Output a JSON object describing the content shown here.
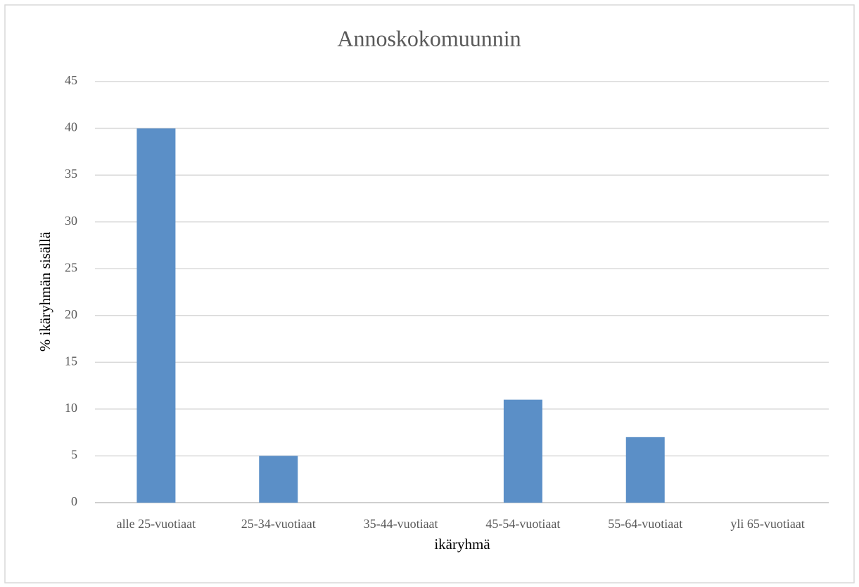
{
  "chart_data": {
    "type": "bar",
    "title": "Annoskokomuunnin",
    "x_label": "ikäryhmä",
    "y_label": "% ikäryhmän sisällä",
    "categories": [
      "alle 25-vuotiaat",
      "25-34-vuotiaat",
      "35-44-vuotiaat",
      "45-54-vuotiaat",
      "55-64-vuotiaat",
      "yli 65-vuotiaat"
    ],
    "values": [
      40,
      5,
      0,
      11,
      7,
      0
    ],
    "color": "#5b8fc7",
    "ylim": [
      0,
      45
    ],
    "yticks": [
      0,
      5,
      10,
      15,
      20,
      25,
      30,
      35,
      40,
      45
    ],
    "grid": true
  }
}
